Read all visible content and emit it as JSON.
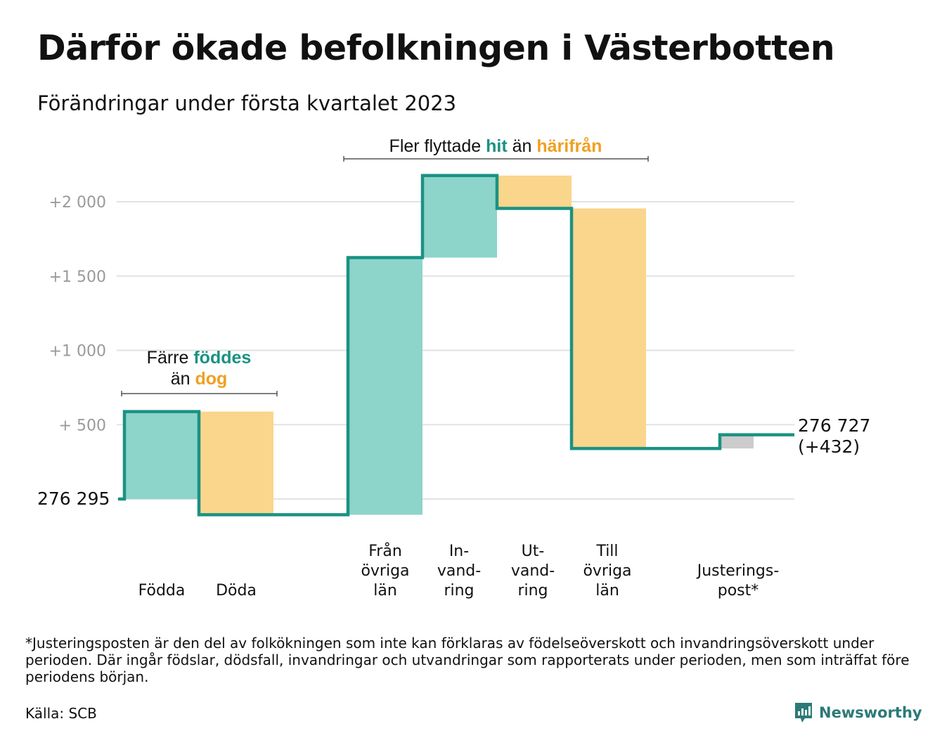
{
  "title": "Därför ökade befolkningen i Västerbotten",
  "subtitle": "Förändringar under första kvartalet 2023",
  "colors": {
    "increase": "#8dd4ca",
    "decrease": "#fad58c",
    "adjustment": "#cccccc",
    "step_line": "#1a9283",
    "accent_hit": "#1a9283",
    "accent_away": "#f0a020",
    "grid": "#e2e2e2",
    "tick": "#9a9a9a"
  },
  "chart_data": {
    "type": "waterfall",
    "start_value": 276295,
    "start_label": "276 295",
    "end_label_value": "276 727",
    "end_label_change": "(+432)",
    "y_axis": {
      "baseline": 0,
      "ylim": [
        -200,
        2250
      ],
      "ticks": [
        {
          "value": 500,
          "label": "+ 500"
        },
        {
          "value": 1000,
          "label": "+1 000"
        },
        {
          "value": 1500,
          "label": "+1 500"
        },
        {
          "value": 2000,
          "label": "+2 000"
        }
      ],
      "grid": true
    },
    "steps": [
      {
        "lines": [
          "Födda"
        ],
        "change": 588,
        "kind": "increase"
      },
      {
        "lines": [
          "Döda"
        ],
        "change": -694,
        "kind": "decrease"
      },
      {
        "lines": [
          "Från",
          "övriga",
          "län"
        ],
        "change": 1730,
        "kind": "increase"
      },
      {
        "lines": [
          "In-",
          "vand-",
          "ring"
        ],
        "change": 552,
        "kind": "increase"
      },
      {
        "lines": [
          "Ut-",
          "vand-",
          "ring"
        ],
        "change": -221,
        "kind": "decrease"
      },
      {
        "lines": [
          "Till",
          "övriga",
          "län"
        ],
        "change": -1615,
        "kind": "decrease"
      },
      {
        "lines": [
          "Justerings-",
          "post*"
        ],
        "change": 92,
        "kind": "adjustment"
      }
    ]
  },
  "annotations": {
    "births": {
      "line1_pre": "Färre ",
      "line1_hl": "föddes",
      "line2_pre": "än ",
      "line2_hl": "dog"
    },
    "migration": {
      "pre": "Fler flyttade ",
      "hl1": "hit",
      "mid": " än ",
      "hl2": "härifrån"
    }
  },
  "footnote": "*Justeringsposten är den del av folkökningen som inte kan förklaras av födelseöverskott och invandringsöverskott under perioden. Där ingår födslar, dödsfall, invandringar och utvandringar som rapporterats under perioden, men som inträffat före periodens början.",
  "source": "Källa: SCB",
  "logo": {
    "text": "Newsworthy",
    "icon": "bar-chart-pin-icon"
  }
}
